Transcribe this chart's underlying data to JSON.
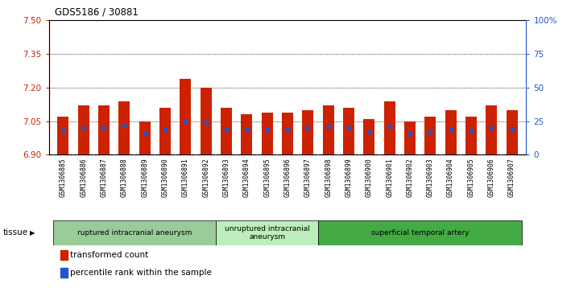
{
  "title": "GDS5186 / 30881",
  "samples": [
    "GSM1306885",
    "GSM1306886",
    "GSM1306887",
    "GSM1306888",
    "GSM1306889",
    "GSM1306890",
    "GSM1306891",
    "GSM1306892",
    "GSM1306893",
    "GSM1306894",
    "GSM1306895",
    "GSM1306896",
    "GSM1306897",
    "GSM1306898",
    "GSM1306899",
    "GSM1306900",
    "GSM1306901",
    "GSM1306902",
    "GSM1306903",
    "GSM1306904",
    "GSM1306905",
    "GSM1306906",
    "GSM1306907"
  ],
  "transformed_count": [
    7.07,
    7.12,
    7.12,
    7.14,
    7.05,
    7.11,
    7.24,
    7.2,
    7.11,
    7.08,
    7.09,
    7.09,
    7.1,
    7.12,
    7.11,
    7.06,
    7.14,
    7.05,
    7.07,
    7.1,
    7.07,
    7.12,
    7.1
  ],
  "percentile_rank": [
    18,
    20,
    20,
    22,
    16,
    19,
    25,
    24,
    19,
    19,
    19,
    19,
    20,
    21,
    20,
    17,
    21,
    16,
    17,
    19,
    18,
    20,
    19
  ],
  "ylim_left": [
    6.9,
    7.5
  ],
  "ylim_right": [
    0,
    100
  ],
  "yticks_left": [
    6.9,
    7.05,
    7.2,
    7.35,
    7.5
  ],
  "yticks_right": [
    0,
    25,
    50,
    75,
    100
  ],
  "bar_color": "#cc2200",
  "dot_color": "#2255cc",
  "plot_bg": "#ffffff",
  "xtick_bg": "#d8d8d8",
  "grid_color": "#000000",
  "groups": [
    {
      "label": "ruptured intracranial aneurysm",
      "start": 0,
      "end": 8,
      "color": "#99cc99"
    },
    {
      "label": "unruptured intracranial\naneurysm",
      "start": 8,
      "end": 13,
      "color": "#bbeebb"
    },
    {
      "label": "superficial temporal artery",
      "start": 13,
      "end": 23,
      "color": "#44aa44"
    }
  ],
  "legend_items": [
    {
      "label": "transformed count",
      "color": "#cc2200"
    },
    {
      "label": "percentile rank within the sample",
      "color": "#2255cc"
    }
  ],
  "tissue_label": "tissue",
  "left_axis_color": "#cc2200",
  "right_axis_color": "#2255cc"
}
